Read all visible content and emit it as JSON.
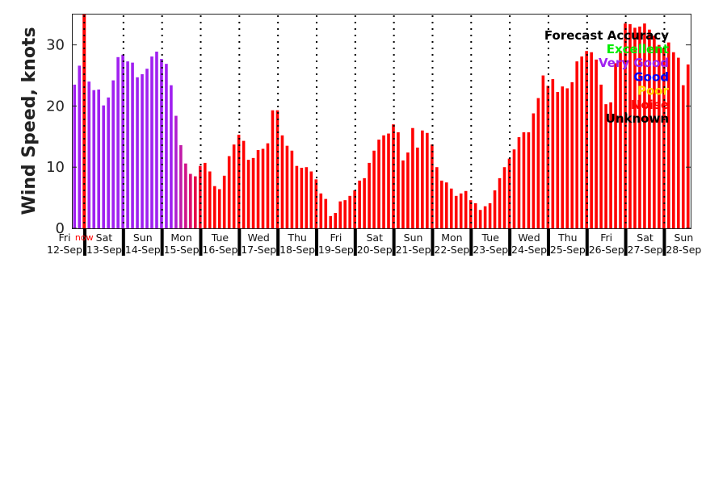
{
  "chart_data": {
    "type": "bar",
    "ylabel": "Wind Speed, knots",
    "ylim": [
      0,
      35.1
    ],
    "yticks": [
      "0",
      "10",
      "20",
      "30"
    ],
    "interval_hours": 3,
    "now_label": "now",
    "now_index": 2,
    "values": [
      23.5,
      26.6,
      25.0,
      24.0,
      22.6,
      22.7,
      20.1,
      21.4,
      24.2,
      28.0,
      28.4,
      27.3,
      27.1,
      24.7,
      25.2,
      26.1,
      28.1,
      28.9,
      27.7,
      26.9,
      23.4,
      18.4,
      13.6,
      10.6,
      8.9,
      8.5,
      10.2,
      10.7,
      9.3,
      6.9,
      6.4,
      8.6,
      11.8,
      13.7,
      15.3,
      14.3,
      11.2,
      11.5,
      12.8,
      13.0,
      13.9,
      19.3,
      19.3,
      15.2,
      13.5,
      12.7,
      10.2,
      9.9,
      10.0,
      9.3,
      8.0,
      5.7,
      4.8,
      2.0,
      2.5,
      4.4,
      4.6,
      5.3,
      6.2,
      7.8,
      8.2,
      10.7,
      12.7,
      14.5,
      15.2,
      15.5,
      17.0,
      15.7,
      11.1,
      12.4,
      16.4,
      13.2,
      16.0,
      15.6,
      13.7,
      10.0,
      7.8,
      7.5,
      6.5,
      5.3,
      5.7,
      6.1,
      4.6,
      4.1,
      3.0,
      3.6,
      4.1,
      6.2,
      8.2,
      10.0,
      11.4,
      12.9,
      14.9,
      15.7,
      15.7,
      18.8,
      21.3,
      25.0,
      23.3,
      24.4,
      22.3,
      23.2,
      22.9,
      23.9,
      27.3,
      28.1,
      29.0,
      28.8,
      27.6,
      23.5,
      20.3,
      20.6,
      27.0,
      29.0,
      33.5,
      33.4,
      32.8,
      33.0,
      33.5,
      32.5,
      31.5,
      30.0,
      29.5,
      30.4,
      28.8,
      27.9,
      23.4,
      26.8
    ],
    "accuracy_colors": {
      "very_good": "#a020f0",
      "transition": [
        "#b01ed0",
        "#c01aa8",
        "#d0128a",
        "#dc0c6c",
        "#e80848",
        "#f40424"
      ],
      "noise": "#ff0000"
    },
    "purple_count": 21,
    "days": [
      {
        "name": "Fri",
        "date": "12-Sep"
      },
      {
        "name": "Sat",
        "date": "13-Sep"
      },
      {
        "name": "Sun",
        "date": "14-Sep"
      },
      {
        "name": "Mon",
        "date": "15-Sep"
      },
      {
        "name": "Tue",
        "date": "16-Sep"
      },
      {
        "name": "Wed",
        "date": "17-Sep"
      },
      {
        "name": "Thu",
        "date": "18-Sep"
      },
      {
        "name": "Fri",
        "date": "19-Sep"
      },
      {
        "name": "Sat",
        "date": "20-Sep"
      },
      {
        "name": "Sun",
        "date": "21-Sep"
      },
      {
        "name": "Mon",
        "date": "22-Sep"
      },
      {
        "name": "Tue",
        "date": "23-Sep"
      },
      {
        "name": "Wed",
        "date": "24-Sep"
      },
      {
        "name": "Thu",
        "date": "25-Sep"
      },
      {
        "name": "Fri",
        "date": "26-Sep"
      },
      {
        "name": "Sat",
        "date": "27-Sep"
      },
      {
        "name": "Sun",
        "date": "28-Sep"
      }
    ],
    "legend": {
      "title": "Forecast Accuracy",
      "placement": "top-right",
      "entries": [
        {
          "label": "Excellent",
          "color": "#00ee00"
        },
        {
          "label": "Very Good",
          "color": "#a020f0"
        },
        {
          "label": "Good",
          "color": "#0000ff"
        },
        {
          "label": "Poor",
          "color": "#ffd700"
        },
        {
          "label": "Noise",
          "color": "#ff0000"
        },
        {
          "label": "Unknown",
          "color": "#000000"
        }
      ]
    }
  }
}
